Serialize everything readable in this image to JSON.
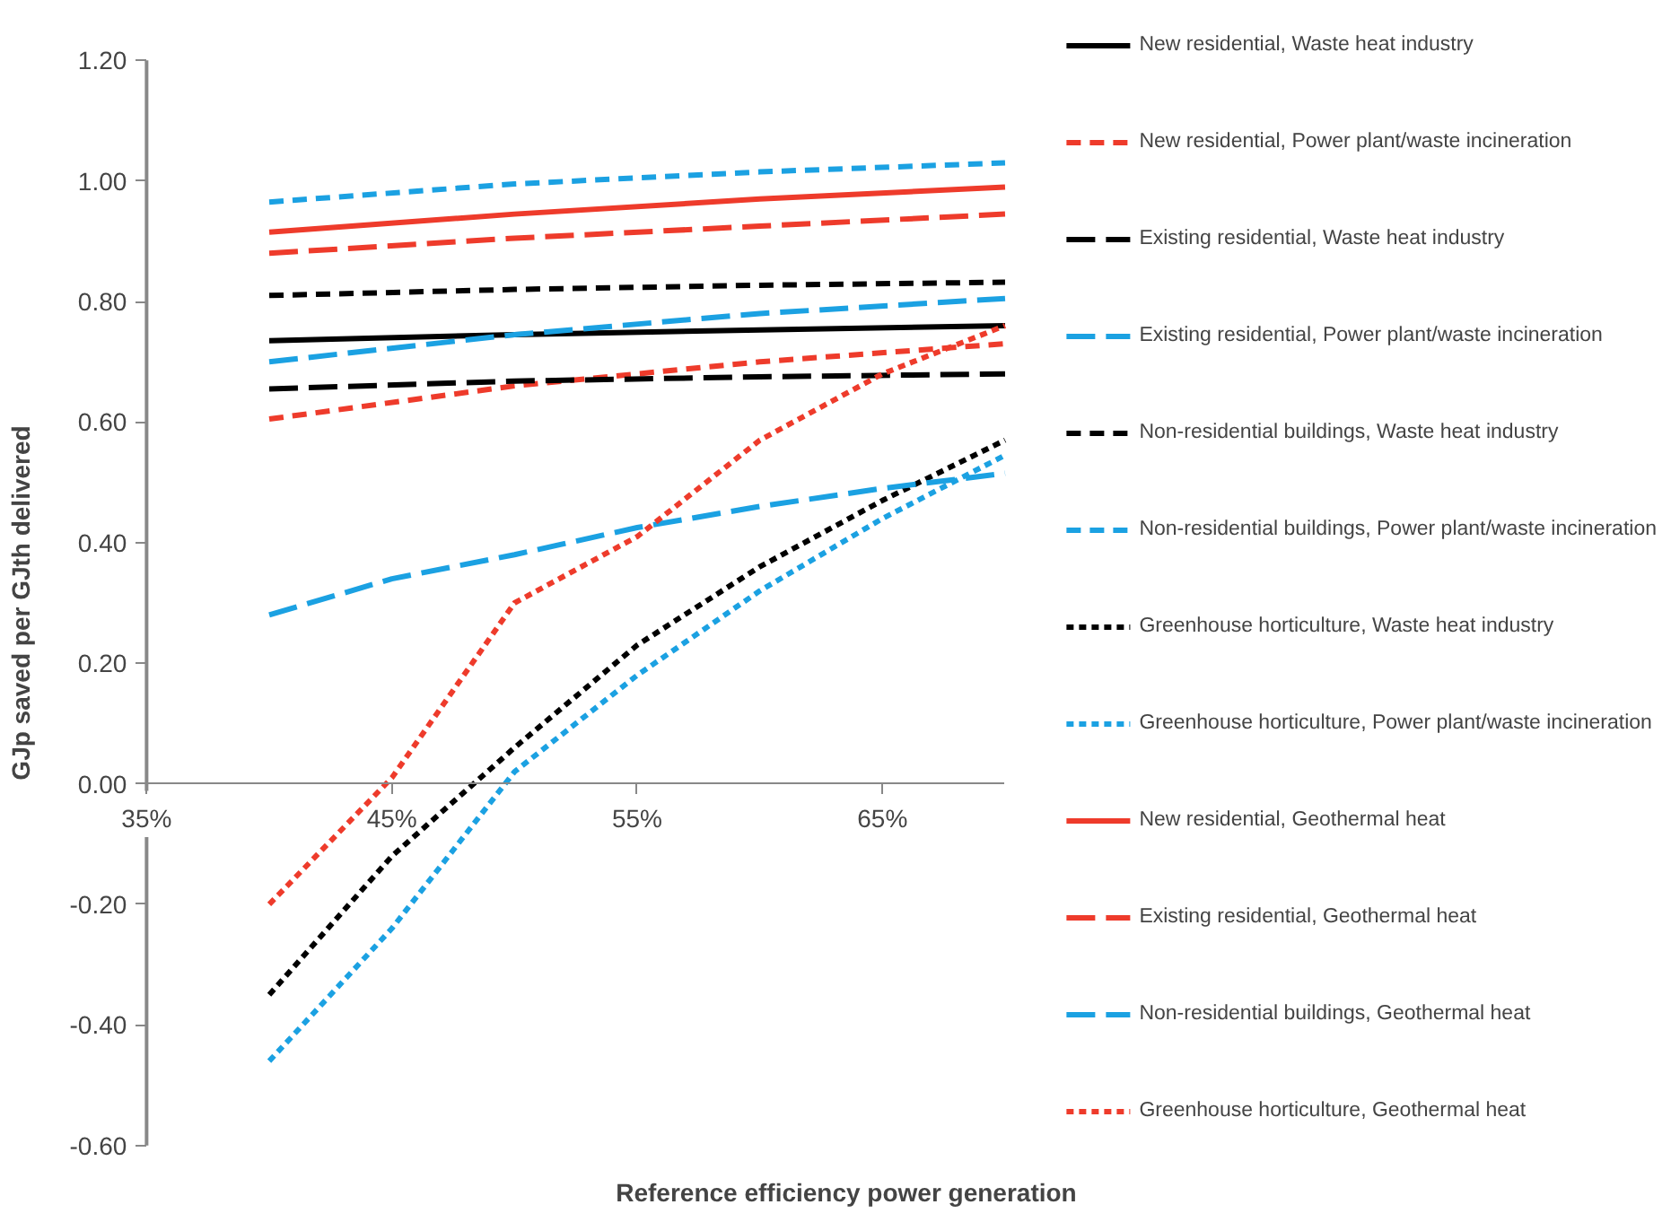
{
  "chart_data": {
    "type": "line",
    "xlabel": "Reference efficiency power generation",
    "ylabel": "GJp saved per GJth delivered",
    "xlim": [
      35,
      70
    ],
    "xticks": [
      {
        "value": 35,
        "label": "35%"
      },
      {
        "value": 45,
        "label": "45%"
      },
      {
        "value": 55,
        "label": "55%"
      },
      {
        "value": 65,
        "label": "65%"
      }
    ],
    "ylim": [
      -0.6,
      1.2
    ],
    "yticks": [
      {
        "value": -0.6,
        "label": "-0.60"
      },
      {
        "value": -0.4,
        "label": "-0.40"
      },
      {
        "value": -0.2,
        "label": "-0.20"
      },
      {
        "value": 0,
        "label": "0.00"
      },
      {
        "value": 0.2,
        "label": "0.20"
      },
      {
        "value": 0.4,
        "label": "0.40"
      },
      {
        "value": 0.6,
        "label": "0.60"
      },
      {
        "value": 0.8,
        "label": "0.80"
      },
      {
        "value": 1.0,
        "label": "1.00"
      },
      {
        "value": 1.2,
        "label": "1.20"
      }
    ],
    "grid": false,
    "legend": "right",
    "marker": "none",
    "series": [
      {
        "name": "New residential, Waste heat industry",
        "color": "#000000",
        "line_style": "solid",
        "x": [
          40,
          50,
          60,
          70
        ],
        "values": [
          0.735,
          0.745,
          0.753,
          0.76
        ]
      },
      {
        "name": "New residential, Power plant/waste incineration",
        "color": "#ee3b2b",
        "line_style": "dashed",
        "x": [
          40,
          50,
          60,
          70
        ],
        "values": [
          0.605,
          0.66,
          0.7,
          0.73
        ]
      },
      {
        "name": "Existing residential, Waste heat industry",
        "color": "#000000",
        "line_style": "longdash",
        "x": [
          40,
          50,
          60,
          70
        ],
        "values": [
          0.655,
          0.668,
          0.675,
          0.68
        ]
      },
      {
        "name": "Existing residential, Power plant/waste incineration",
        "color": "#1ba1e2",
        "line_style": "longdash",
        "x": [
          40,
          50,
          60,
          70
        ],
        "values": [
          0.7,
          0.745,
          0.78,
          0.805
        ]
      },
      {
        "name": "Non-residential buildings, Waste heat industry",
        "color": "#000000",
        "line_style": "dashed",
        "x": [
          40,
          50,
          60,
          70
        ],
        "values": [
          0.81,
          0.82,
          0.827,
          0.832
        ]
      },
      {
        "name": "Non-residential buildings, Power plant/waste incineration",
        "color": "#1ba1e2",
        "line_style": "dashed",
        "x": [
          40,
          50,
          60,
          70
        ],
        "values": [
          0.965,
          0.995,
          1.015,
          1.03
        ]
      },
      {
        "name": "Greenhouse horticulture, Waste heat industry",
        "color": "#000000",
        "line_style": "dotted",
        "x": [
          40,
          45,
          50,
          55,
          60,
          65,
          70
        ],
        "values": [
          -0.35,
          -0.12,
          0.06,
          0.23,
          0.36,
          0.47,
          0.57
        ]
      },
      {
        "name": "Greenhouse horticulture, Power plant/waste incineration",
        "color": "#1ba1e2",
        "line_style": "dotted",
        "x": [
          40,
          45,
          50,
          55,
          60,
          65,
          70
        ],
        "values": [
          -0.46,
          -0.24,
          0.02,
          0.18,
          0.32,
          0.44,
          0.545
        ]
      },
      {
        "name": "New residential, Geothermal heat",
        "color": "#ee3b2b",
        "line_style": "solid",
        "x": [
          40,
          50,
          60,
          70
        ],
        "values": [
          0.915,
          0.945,
          0.97,
          0.99
        ]
      },
      {
        "name": "Existing residential, Geothermal heat",
        "color": "#ee3b2b",
        "line_style": "longdash",
        "x": [
          40,
          50,
          60,
          70
        ],
        "values": [
          0.88,
          0.905,
          0.925,
          0.945
        ]
      },
      {
        "name": "Non-residential buildings, Geothermal heat",
        "color": "#1ba1e2",
        "line_style": "longdash",
        "x": [
          40,
          45,
          50,
          55,
          60,
          65,
          70
        ],
        "values": [
          0.28,
          0.34,
          0.38,
          0.425,
          0.46,
          0.49,
          0.515
        ]
      },
      {
        "name": "Greenhouse horticulture, Geothermal heat",
        "color": "#ee3b2b",
        "line_style": "dotted",
        "x": [
          40,
          45,
          50,
          55,
          60,
          65,
          70
        ],
        "values": [
          -0.2,
          0.01,
          0.3,
          0.41,
          0.57,
          0.68,
          0.76
        ]
      }
    ]
  }
}
